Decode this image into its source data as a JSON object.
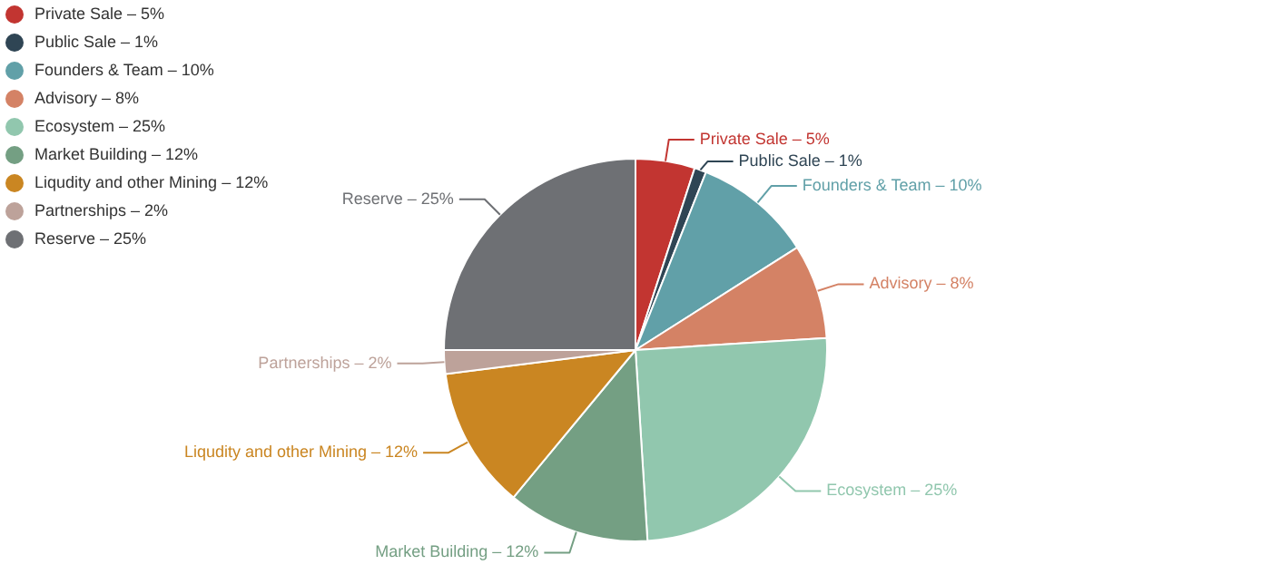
{
  "chart_data": {
    "type": "pie",
    "categories": [
      "Private Sale – 5%",
      "Public Sale – 1%",
      "Founders & Team – 10%",
      "Advisory – 8%",
      "Ecosystem – 25%",
      "Market Building – 12%",
      "Liqudity and other Mining – 12%",
      "Partnerships – 2%",
      "Reserve – 25%"
    ],
    "values": [
      5,
      1,
      10,
      8,
      25,
      12,
      12,
      2,
      25
    ],
    "colors": [
      "#c23531",
      "#2f4554",
      "#61a0a8",
      "#d48265",
      "#91c7ae",
      "#749f83",
      "#ca8622",
      "#bda29a",
      "#6e7074"
    ],
    "legend": "top left"
  }
}
